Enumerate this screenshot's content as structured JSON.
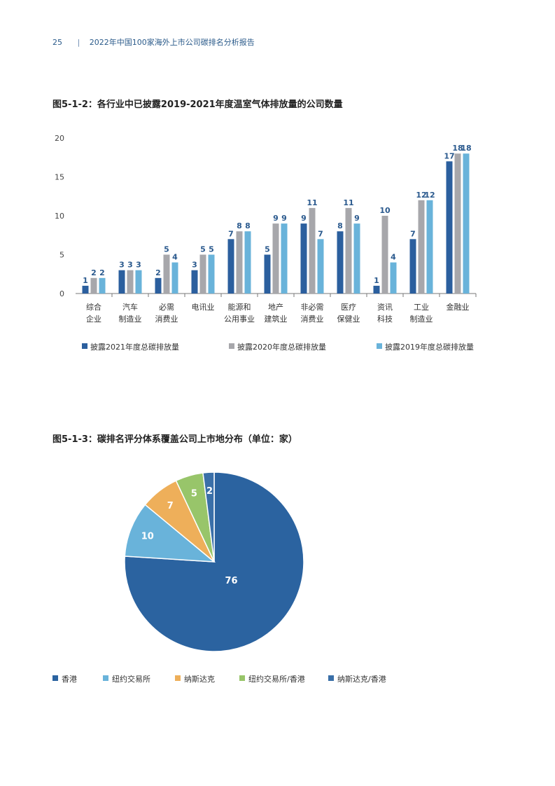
{
  "header": {
    "page_number": "25",
    "report_title": "2022年中国100家海外上市公司碳排名分析报告"
  },
  "figure1": {
    "title": "图5-1-2：各行业中已披露2019-2021年度温室气体排放量的公司数量"
  },
  "figure2": {
    "title": "图5-1-3：碳排名评分体系覆盖公司上市地分布（单位：家）"
  },
  "chart_data": [
    {
      "type": "bar",
      "title": "图5-1-2：各行业中已披露2019-2021年度温室气体排放量的公司数量",
      "categories": [
        [
          "综合",
          "企业"
        ],
        [
          "汽车",
          "制造业"
        ],
        [
          "必需",
          "消费业"
        ],
        [
          "电讯业"
        ],
        [
          "能源和",
          "公用事业"
        ],
        [
          "地产",
          "建筑业"
        ],
        [
          "非必需",
          "消费业"
        ],
        [
          "医疗",
          "保健业"
        ],
        [
          "资讯",
          "科技"
        ],
        [
          "工业",
          "制造业"
        ],
        [
          "金融业"
        ]
      ],
      "ylim": [
        0,
        20
      ],
      "yticks": [
        0,
        5,
        10,
        15,
        20
      ],
      "legend_position": "bottom",
      "series": [
        {
          "name": "披露2021年度总碳排放量",
          "color": "#2b5f9e",
          "values": [
            1,
            3,
            2,
            3,
            7,
            5,
            9,
            8,
            1,
            7,
            17
          ]
        },
        {
          "name": "披露2020年度总碳排放量",
          "color": "#a7a7ab",
          "values": [
            2,
            3,
            5,
            5,
            8,
            9,
            11,
            11,
            10,
            12,
            18
          ]
        },
        {
          "name": "披露2019年度总碳排放量",
          "color": "#69b3da",
          "values": [
            2,
            3,
            4,
            5,
            8,
            9,
            7,
            9,
            4,
            12,
            18
          ]
        }
      ]
    },
    {
      "type": "pie",
      "title": "图5-1-3：碳排名评分体系覆盖公司上市地分布（单位：家）",
      "legend_position": "bottom",
      "slices": [
        {
          "name": "香港",
          "value": 76,
          "color": "#2b63a0"
        },
        {
          "name": "纽约交易所",
          "value": 10,
          "color": "#69b3da"
        },
        {
          "name": "纳斯达克",
          "value": 7,
          "color": "#eeaf5a"
        },
        {
          "name": "纽约交易所/香港",
          "value": 5,
          "color": "#98c56a"
        },
        {
          "name": "纳斯达克/香港",
          "value": 2,
          "color": "#3a6fa8"
        }
      ]
    }
  ]
}
